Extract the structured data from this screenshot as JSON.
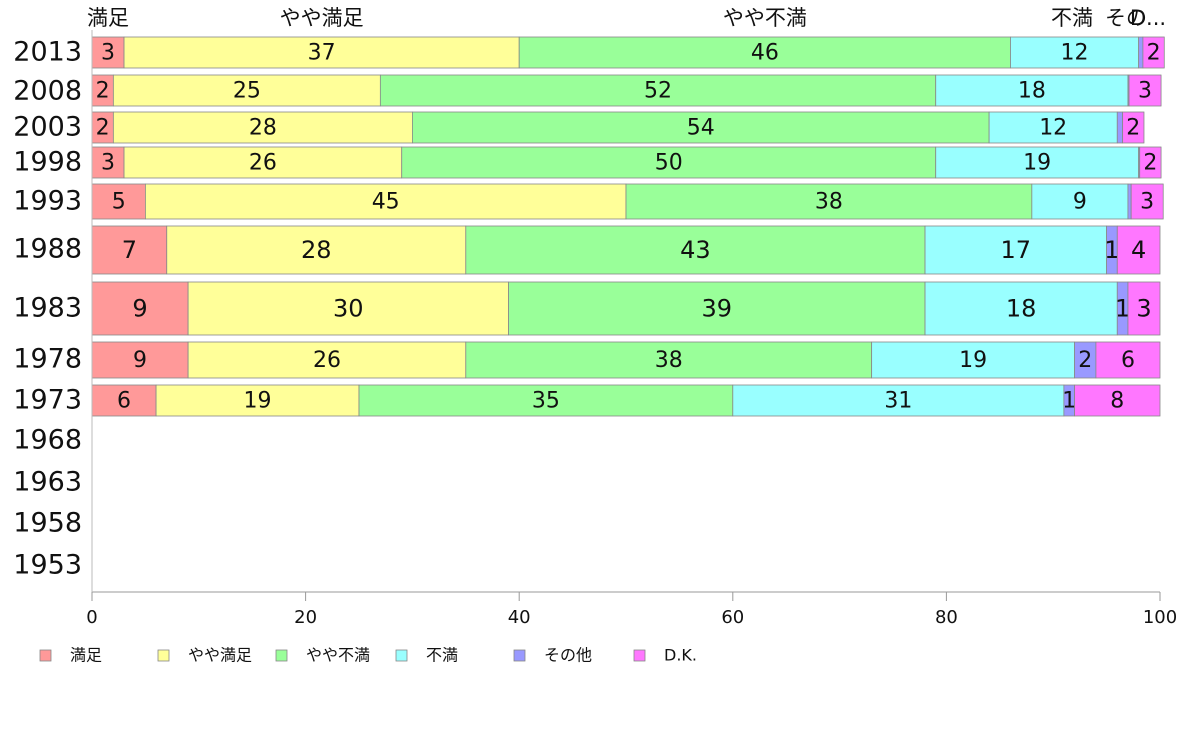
{
  "chart_data": {
    "type": "bar",
    "orientation": "horizontal",
    "stacked": true,
    "categories": [
      "2013",
      "2008",
      "2003",
      "1998",
      "1993",
      "1988",
      "1983",
      "1978",
      "1973",
      "1968",
      "1963",
      "1958",
      "1953"
    ],
    "series": [
      {
        "name": "満足",
        "color": "#ff9999",
        "values": [
          3,
          2,
          2,
          3,
          5,
          7,
          9,
          9,
          6,
          null,
          null,
          null,
          null
        ]
      },
      {
        "name": "やや満足",
        "color": "#ffff99",
        "values": [
          37,
          25,
          28,
          26,
          45,
          28,
          30,
          26,
          19,
          null,
          null,
          null,
          null
        ]
      },
      {
        "name": "やや不満",
        "color": "#99ff99",
        "values": [
          46,
          52,
          54,
          50,
          38,
          43,
          39,
          38,
          35,
          null,
          null,
          null,
          null
        ]
      },
      {
        "name": "不満",
        "color": "#99ffff",
        "values": [
          12,
          18,
          12,
          19,
          9,
          17,
          18,
          19,
          31,
          null,
          null,
          null,
          null
        ]
      },
      {
        "name": "その他",
        "color": "#9999ff",
        "values": [
          0.4,
          0.1,
          0.5,
          0.1,
          0.3,
          1,
          1,
          2,
          1,
          null,
          null,
          null,
          null
        ]
      },
      {
        "name": "D.K.",
        "color": "#ff77ff",
        "values": [
          2,
          3,
          2,
          2,
          3,
          4,
          3,
          6,
          8,
          null,
          null,
          null,
          null
        ]
      }
    ],
    "top_labels": [
      "満足",
      "やや満足",
      "やや不満",
      "不満",
      "その",
      "D..."
    ],
    "xlim": [
      0,
      100
    ],
    "xticks": [
      "0",
      "20",
      "40",
      "60",
      "80",
      "100"
    ],
    "grid": false,
    "legend_position": "bottom-left"
  }
}
